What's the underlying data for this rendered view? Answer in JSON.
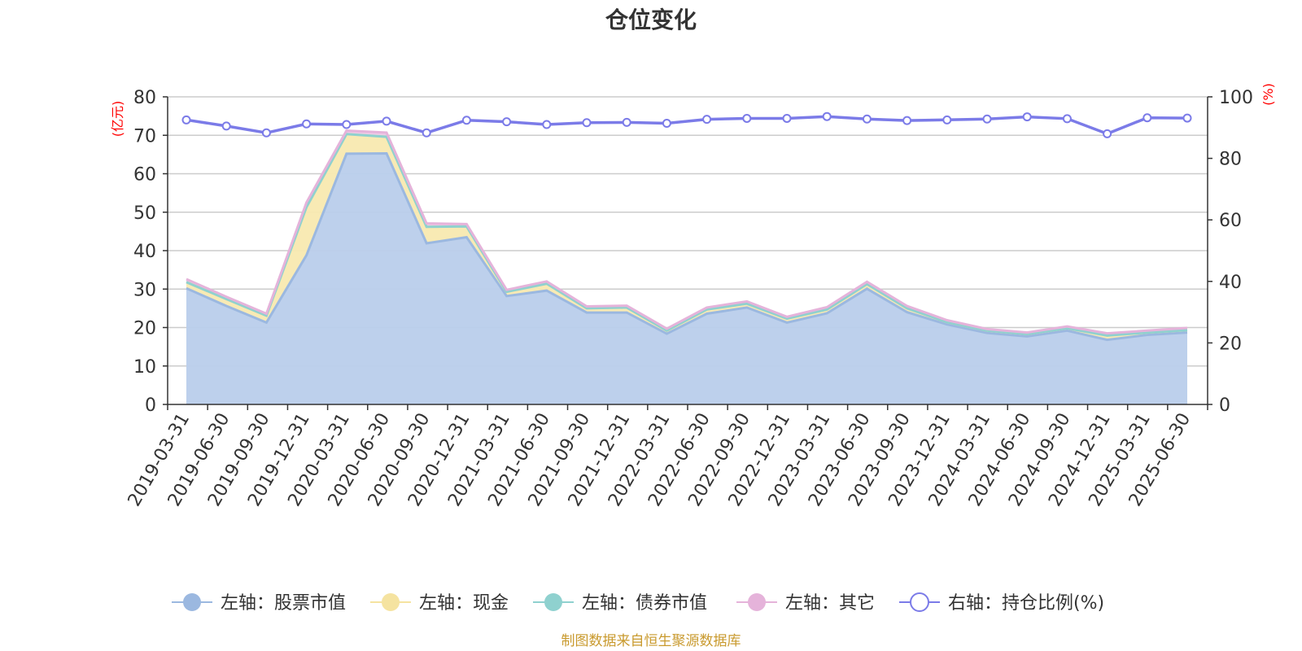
{
  "chart_data": {
    "type": "area",
    "title": "仓位变化",
    "left_unit": "(亿元)",
    "right_unit": "(%)",
    "left_ylim": [
      0,
      80
    ],
    "left_ticks": [
      0,
      10,
      20,
      30,
      40,
      50,
      60,
      70,
      80
    ],
    "right_ylim": [
      0,
      100
    ],
    "right_ticks": [
      0,
      20,
      40,
      60,
      80,
      100
    ],
    "grid": true,
    "legend_position": "bottom",
    "stacked": true,
    "categories": [
      "2019-03-31",
      "2019-06-30",
      "2019-09-30",
      "2019-12-31",
      "2020-03-31",
      "2020-06-30",
      "2020-09-30",
      "2020-12-31",
      "2021-03-31",
      "2021-06-30",
      "2021-09-30",
      "2021-12-31",
      "2022-03-31",
      "2022-06-30",
      "2022-09-30",
      "2022-12-31",
      "2023-03-31",
      "2023-06-30",
      "2023-09-30",
      "2023-12-31",
      "2024-03-31",
      "2024-06-30",
      "2024-09-30",
      "2024-12-31",
      "2025-03-31",
      "2025-06-30"
    ],
    "series": [
      {
        "name": "左轴：股票市值",
        "axis": "left",
        "color": "#9bb8e0",
        "fill": "#b9cdeb",
        "values": [
          30.2,
          25.6,
          21.3,
          38.8,
          65.2,
          65.3,
          41.9,
          43.5,
          28.2,
          29.6,
          23.9,
          23.9,
          18.4,
          23.6,
          25.2,
          21.3,
          23.7,
          30.1,
          24.0,
          20.8,
          18.6,
          17.7,
          19.2,
          16.8,
          18.1,
          18.7
        ]
      },
      {
        "name": "左轴：现金",
        "axis": "left",
        "color": "#f5e3a0",
        "fill": "#f8e9b0",
        "values": [
          1.6,
          1.8,
          1.8,
          12.5,
          5.1,
          4.3,
          4.3,
          2.8,
          1.1,
          1.8,
          1.1,
          1.3,
          0.8,
          1.1,
          1.0,
          1.0,
          1.0,
          1.2,
          1.0,
          0.6,
          0.6,
          0.6,
          0.6,
          1.1,
          0.6,
          0.6
        ]
      },
      {
        "name": "左轴：债券市值",
        "axis": "left",
        "color": "#8fd1cf",
        "fill": "#a8dcda",
        "values": [
          0,
          0,
          0,
          0,
          0,
          0,
          0,
          0,
          0,
          0,
          0,
          0,
          0,
          0,
          0,
          0,
          0,
          0,
          0,
          0,
          0,
          0,
          0,
          0,
          0,
          0
        ]
      },
      {
        "name": "左轴：其它",
        "axis": "left",
        "color": "#e5b3da",
        "fill": "#edc7e6",
        "values": [
          0.8,
          0.6,
          0.5,
          1.2,
          0.9,
          1.1,
          0.9,
          0.6,
          0.5,
          0.6,
          0.5,
          0.5,
          0.5,
          0.5,
          0.6,
          0.5,
          0.6,
          0.6,
          0.6,
          0.5,
          0.4,
          0.4,
          0.5,
          0.6,
          0.5,
          0.6
        ]
      },
      {
        "name": "右轴：持仓比例(%)",
        "axis": "right",
        "color": "#7b7be8",
        "values": [
          92.5,
          90.5,
          88.3,
          91.2,
          91.0,
          92.1,
          88.3,
          92.4,
          91.9,
          91.0,
          91.6,
          91.7,
          91.4,
          92.7,
          93.0,
          93.0,
          93.6,
          92.8,
          92.3,
          92.5,
          92.8,
          93.5,
          92.9,
          88.0,
          93.2,
          93.1
        ]
      }
    ]
  },
  "source_text": "制图数据来自恒生聚源数据库"
}
